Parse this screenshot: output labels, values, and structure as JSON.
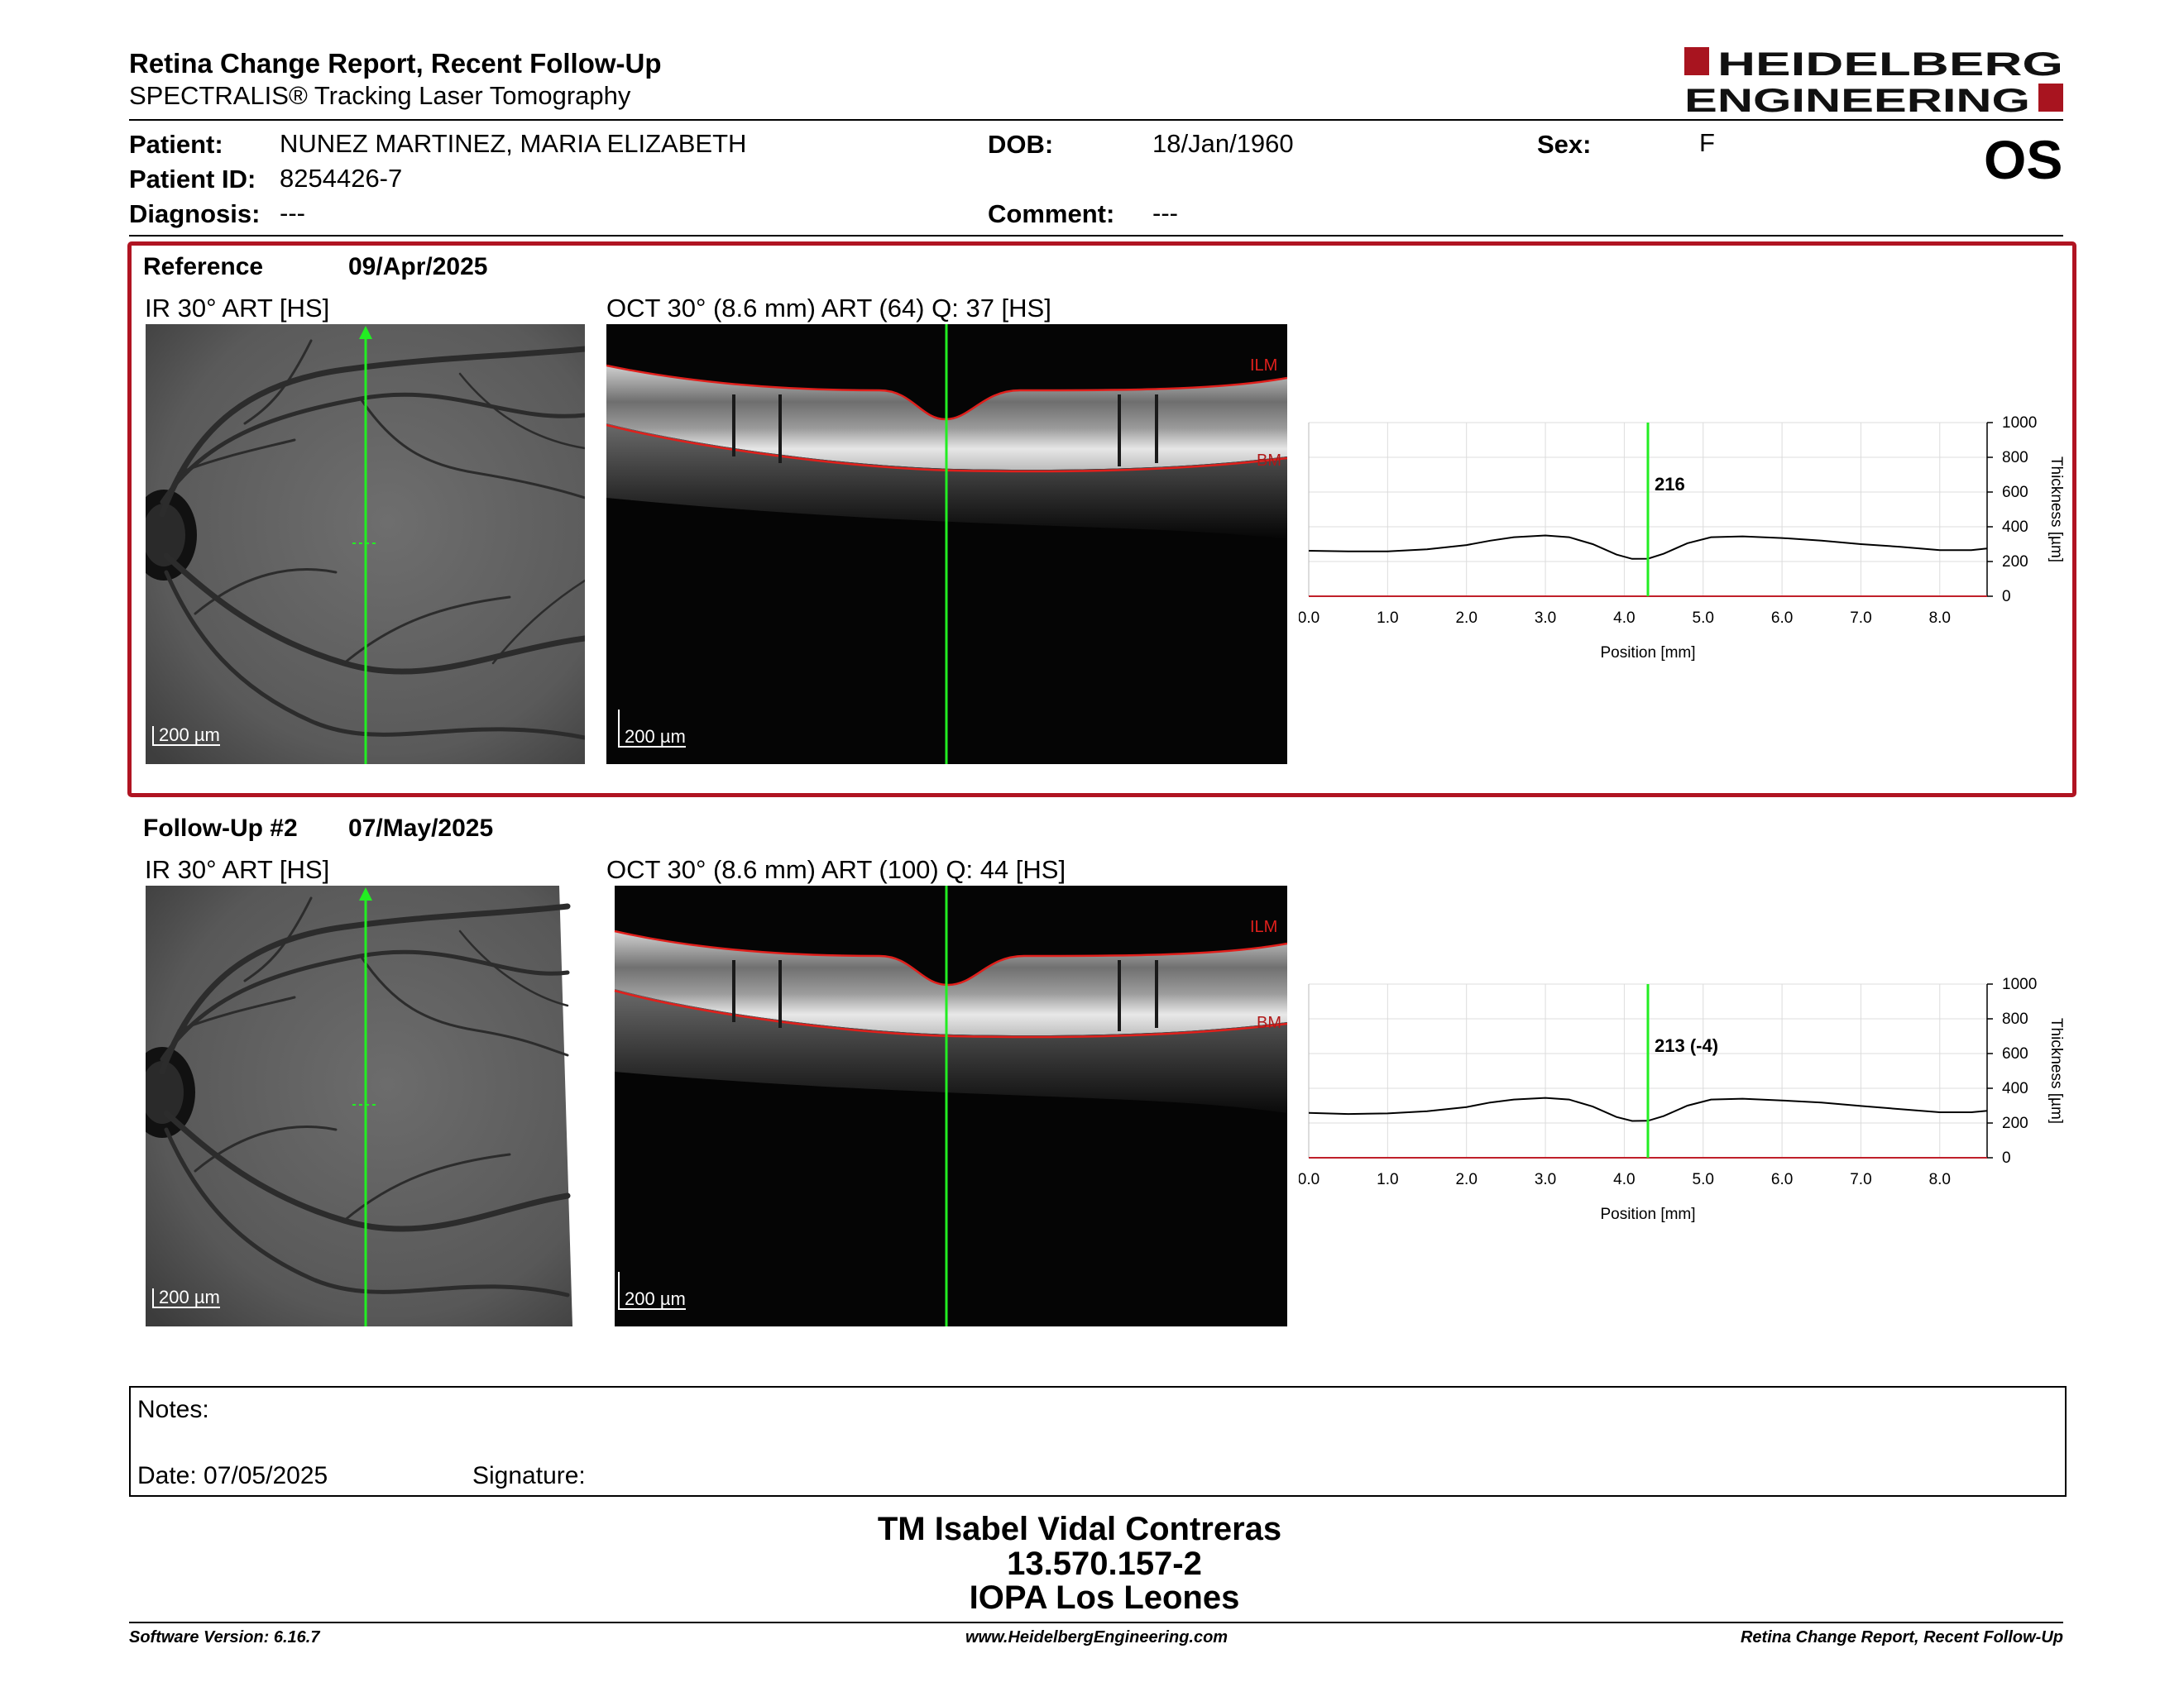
{
  "header": {
    "title": "Retina Change Report, Recent Follow-Up",
    "subtitle": "SPECTRALIS® Tracking Laser Tomography",
    "logo_line1": "HEIDELBERG",
    "logo_line2": "ENGINEERING",
    "eye": "OS"
  },
  "patient": {
    "patient_label": "Patient:",
    "patient_value": "NUNEZ MARTINEZ, MARIA ELIZABETH",
    "id_label": "Patient ID:",
    "id_value": "8254426-7",
    "diagnosis_label": "Diagnosis:",
    "diagnosis_value": "---",
    "dob_label": "DOB:",
    "dob_value": "18/Jan/1960",
    "comment_label": "Comment:",
    "comment_value": "---",
    "sex_label": "Sex:",
    "sex_value": "F"
  },
  "sections": [
    {
      "title": "Reference",
      "date": "09/Apr/2025",
      "ir_label": "IR 30° ART [HS]",
      "oct_label": "OCT 30° (8.6 mm) ART (64) Q: 37 [HS]",
      "scale": "200 µm",
      "ilm": "ILM",
      "bm": "BM",
      "marker_value": "216"
    },
    {
      "title": "Follow-Up #2",
      "date": "07/May/2025",
      "ir_label": "IR 30° ART [HS]",
      "oct_label": "OCT 30° (8.6 mm) ART (100) Q: 44 [HS]",
      "scale": "200 µm",
      "ilm": "ILM",
      "bm": "BM",
      "marker_value": "213 (-4)"
    }
  ],
  "chart_data": [
    {
      "type": "line",
      "xlabel": "Position [mm]",
      "ylabel": "Thickness [µm]",
      "xlim": [
        0,
        8.6
      ],
      "ylim": [
        0,
        1000
      ],
      "xticks": [
        "0.0",
        "1.0",
        "2.0",
        "3.0",
        "4.0",
        "5.0",
        "6.0",
        "7.0",
        "8.0"
      ],
      "yticks": [
        "0",
        "200",
        "400",
        "600",
        "800",
        "1000"
      ],
      "grid": true,
      "marker_x": 4.3,
      "marker_label": "216",
      "series": [
        {
          "x": [
            0.0,
            0.5,
            1.0,
            1.5,
            2.0,
            2.3,
            2.6,
            3.0,
            3.3,
            3.6,
            3.9,
            4.1,
            4.3,
            4.5,
            4.8,
            5.1,
            5.5,
            6.0,
            6.5,
            7.0,
            7.5,
            8.0,
            8.4,
            8.6
          ],
          "y": [
            262,
            258,
            258,
            270,
            295,
            320,
            340,
            350,
            340,
            300,
            240,
            215,
            216,
            245,
            305,
            340,
            345,
            335,
            320,
            300,
            285,
            265,
            265,
            275
          ]
        }
      ]
    },
    {
      "type": "line",
      "xlabel": "Position [mm]",
      "ylabel": "Thickness [µm]",
      "xlim": [
        0,
        8.6
      ],
      "ylim": [
        0,
        1000
      ],
      "xticks": [
        "0.0",
        "1.0",
        "2.0",
        "3.0",
        "4.0",
        "5.0",
        "6.0",
        "7.0",
        "8.0"
      ],
      "yticks": [
        "0",
        "200",
        "400",
        "600",
        "800",
        "1000"
      ],
      "grid": true,
      "marker_x": 4.3,
      "marker_label": "213 (-4)",
      "series": [
        {
          "x": [
            0.0,
            0.5,
            1.0,
            1.5,
            2.0,
            2.3,
            2.6,
            3.0,
            3.3,
            3.6,
            3.9,
            4.1,
            4.3,
            4.5,
            4.8,
            5.1,
            5.5,
            6.0,
            6.5,
            7.0,
            7.5,
            8.0,
            8.4,
            8.6
          ],
          "y": [
            258,
            252,
            255,
            268,
            292,
            318,
            335,
            345,
            335,
            295,
            235,
            212,
            213,
            240,
            300,
            335,
            340,
            330,
            318,
            298,
            280,
            262,
            262,
            270
          ]
        }
      ]
    }
  ],
  "notes": {
    "label": "Notes:",
    "date_label": "Date: 07/05/2025",
    "signature_label": "Signature:"
  },
  "signer": {
    "name": "TM Isabel Vidal Contreras",
    "rut": "13.570.157-2",
    "place": "IOPA Los Leones"
  },
  "footer": {
    "software": "Software Version: 6.16.7",
    "website": "www.HeidelbergEngineering.com",
    "report": "Retina Change Report, Recent Follow-Up"
  }
}
